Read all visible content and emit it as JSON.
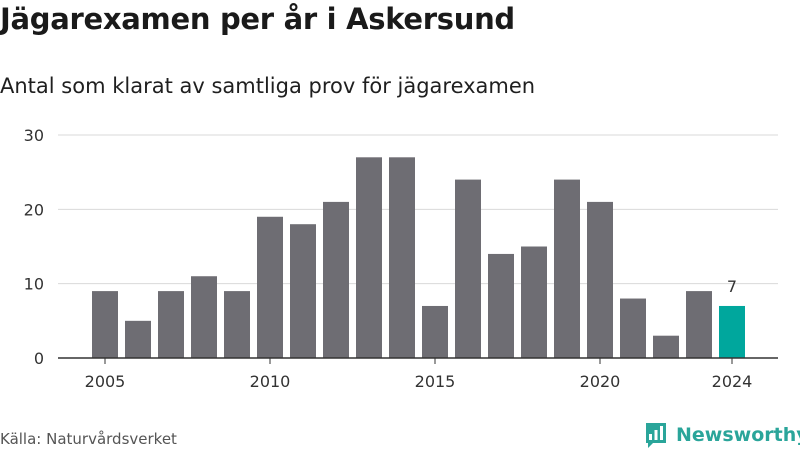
{
  "header": {
    "title": "Jägarexamen per år i Askersund",
    "subtitle": "Antal som klarat av samtliga prov för jägarexamen"
  },
  "footer": {
    "source": "Källa: Naturvårdsverket",
    "brand": "Newsworthy",
    "brand_icon": "bar-chart-speech-bubble-icon"
  },
  "colors": {
    "bar": "#6e6d73",
    "highlight": "#00a79d",
    "grid": "#d9d9d9",
    "axis": "#333333",
    "brand": "#2aa59a"
  },
  "chart_data": {
    "type": "bar",
    "x": [
      2005,
      2006,
      2007,
      2008,
      2009,
      2010,
      2011,
      2012,
      2013,
      2014,
      2015,
      2016,
      2017,
      2018,
      2019,
      2020,
      2021,
      2022,
      2023,
      2024
    ],
    "values": [
      9,
      5,
      9,
      11,
      9,
      19,
      18,
      21,
      27,
      27,
      7,
      24,
      14,
      15,
      24,
      21,
      8,
      3,
      9,
      7
    ],
    "xticks": [
      2005,
      2010,
      2015,
      2020,
      2024
    ],
    "yticks": [
      0,
      10,
      20,
      30
    ],
    "ylim": [
      0,
      30
    ],
    "highlight": {
      "x": 2024,
      "label": "7"
    },
    "grid": true,
    "legend": "none"
  }
}
